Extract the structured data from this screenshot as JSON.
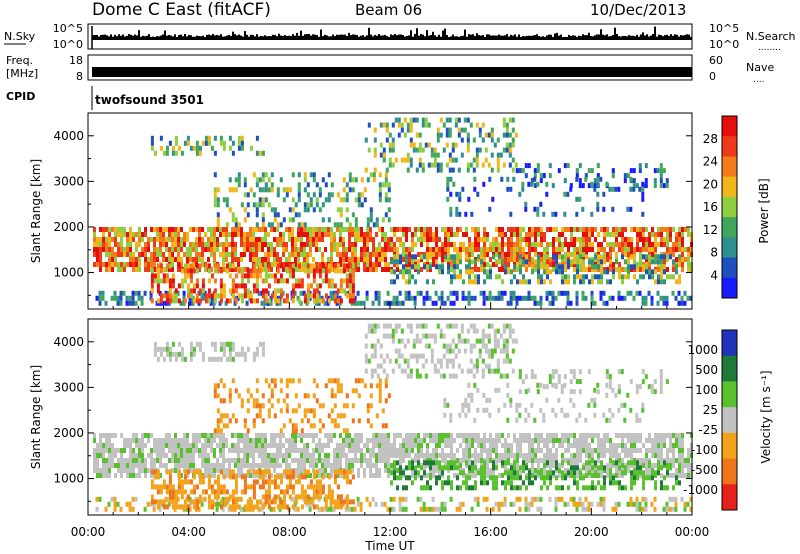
{
  "header": {
    "station": "Dome C East (fitACF)",
    "beam": "Beam 06",
    "date": "10/Dec/2013"
  },
  "strip_panels": {
    "nsky": {
      "label": "N.Sky",
      "ticks": [
        "10^5",
        "10^0"
      ],
      "right_ticks": [
        "10^5",
        "10^0"
      ],
      "right_label": "N.Search",
      "right_dots": "........"
    },
    "freq": {
      "label_line1": "Freq.",
      "label_line2": "[MHz]",
      "ticks": [
        "18",
        "8"
      ],
      "right_ticks": [
        "60",
        "0"
      ],
      "right_label": "Nave",
      "right_dots": "...."
    },
    "cpid": {
      "label": "CPID",
      "program": "twofsound 3501"
    }
  },
  "colors": {
    "power": [
      "#1a1aff",
      "#1f4fbf",
      "#2f8f8f",
      "#3fa65a",
      "#8fcf3f",
      "#f2b51a",
      "#f57a1a",
      "#ef3a1a",
      "#e60d0d"
    ],
    "velocity_pos": [
      "#2233bb",
      "#1f7a3a",
      "#59c02e"
    ],
    "velocity_neutral": "#c2c2c2",
    "velocity_neg": [
      "#f2a31a",
      "#f0741a",
      "#e6201a"
    ]
  },
  "chart_data": [
    {
      "type": "heatmap",
      "name": "power",
      "ylabel": "Slant Range [km]",
      "yticks": [
        1000,
        2000,
        3000,
        4000
      ],
      "ylim": [
        200,
        4500
      ],
      "xlim": [
        0,
        24
      ],
      "colorbar_label": "Power [dB]",
      "colorbar_ticks": [
        "28",
        "24",
        "20",
        "16",
        "12",
        "8",
        "4"
      ]
    },
    {
      "type": "heatmap",
      "name": "velocity",
      "ylabel": "Slant Range [km]",
      "yticks": [
        1000,
        2000,
        3000,
        4000
      ],
      "ylim": [
        200,
        4500
      ],
      "xlim": [
        0,
        24
      ],
      "colorbar_label": "Velocity [m s⁻¹]",
      "colorbar_ticks": [
        "1000",
        "500",
        "100",
        "25",
        "-25",
        "-100",
        "-500",
        "-1000"
      ]
    }
  ],
  "x_axis": {
    "ticks": [
      "00:00",
      "04:00",
      "08:00",
      "12:00",
      "16:00",
      "20:00",
      "00:00"
    ],
    "label": "Time UT"
  }
}
